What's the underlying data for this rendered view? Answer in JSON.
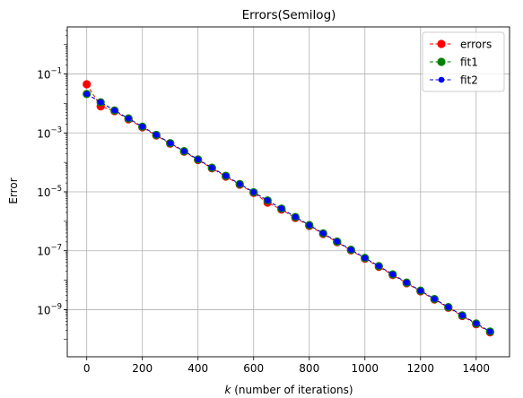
{
  "chart_data": {
    "type": "line",
    "title": "Errors(Semilog)",
    "xlabel_italic": "k",
    "xlabel_rest": " (number of iterations)",
    "ylabel": "Error",
    "yscale": "log",
    "xlim": [
      -70,
      1520
    ],
    "ylim_exp": [
      -10.6,
      0.6
    ],
    "grid": true,
    "legend_placement": "top-right",
    "xticks": [
      0,
      200,
      400,
      600,
      800,
      1000,
      1200,
      1400
    ],
    "yticks_exp": [
      -9,
      -7,
      -5,
      -3,
      -1
    ],
    "x": [
      0,
      50,
      100,
      150,
      200,
      250,
      300,
      350,
      400,
      450,
      500,
      550,
      600,
      650,
      700,
      750,
      800,
      850,
      900,
      950,
      1000,
      1050,
      1100,
      1150,
      1200,
      1250,
      1300,
      1350,
      1400,
      1450
    ],
    "series": [
      {
        "name": "errors",
        "color": "#ff0000",
        "marker": "circle",
        "y": [
          0.045,
          0.008,
          0.0055,
          0.0029,
          0.00155,
          0.00082,
          0.00043,
          0.00023,
          0.00012,
          6.3e-05,
          3.3e-05,
          1.75e-05,
          9.2e-06,
          4.3e-06,
          2.5e-06,
          1.3e-06,
          7e-07,
          3.7e-07,
          1.95e-07,
          1.03e-07,
          5.4e-08,
          2.85e-08,
          1.5e-08,
          7.9e-09,
          4.2e-09,
          2.2e-09,
          1.16e-09,
          6.1e-10,
          3.2e-10,
          1.7e-10
        ]
      },
      {
        "name": "fit1",
        "color": "#008000",
        "marker": "circle",
        "y": [
          0.021,
          0.011,
          0.0058,
          0.0031,
          0.00163,
          0.00086,
          0.00045,
          0.00024,
          0.000126,
          6.6e-05,
          3.5e-05,
          1.84e-05,
          9.7e-06,
          5.1e-06,
          2.7e-06,
          1.4e-06,
          7.4e-07,
          3.9e-07,
          2.05e-07,
          1.08e-07,
          5.7e-08,
          3e-08,
          1.58e-08,
          8.3e-09,
          4.4e-09,
          2.3e-09,
          1.22e-09,
          6.4e-10,
          3.4e-10,
          1.8e-10
        ]
      },
      {
        "name": "fit2",
        "color": "#0000ff",
        "marker": "circle-small",
        "y": [
          0.021,
          0.011,
          0.0058,
          0.0031,
          0.00163,
          0.00086,
          0.00045,
          0.00024,
          0.000126,
          6.6e-05,
          3.5e-05,
          1.84e-05,
          9.7e-06,
          5.1e-06,
          2.7e-06,
          1.4e-06,
          7.4e-07,
          3.9e-07,
          2.05e-07,
          1.08e-07,
          5.7e-08,
          3e-08,
          1.58e-08,
          8.3e-09,
          4.4e-09,
          2.3e-09,
          1.22e-09,
          6.4e-10,
          3.4e-10,
          1.8e-10
        ]
      }
    ]
  }
}
